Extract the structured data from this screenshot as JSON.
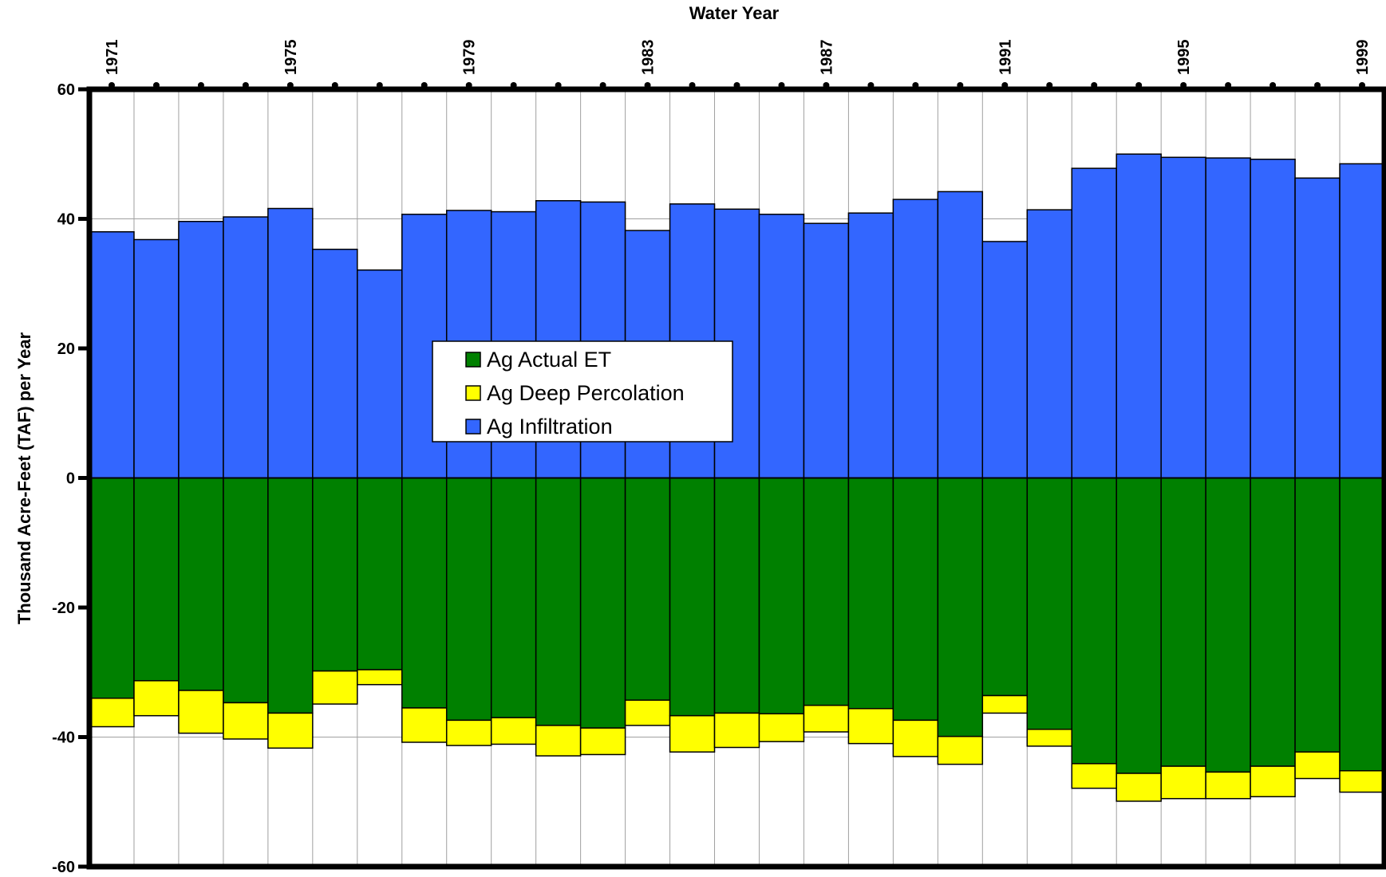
{
  "chart_data": {
    "type": "bar",
    "stacked": true,
    "title": "",
    "xlabel": "Water Year",
    "ylabel": "Thousand Acre-Feet (TAF) per Year",
    "ylim": [
      -60,
      60
    ],
    "yticks": [
      60,
      40,
      20,
      0,
      -20,
      -40,
      -60
    ],
    "grid": true,
    "legend_position": "center-left",
    "x_axis_position": "top",
    "categories": [
      "1971",
      "1972",
      "1973",
      "1974",
      "1975",
      "1976",
      "1977",
      "1978",
      "1979",
      "1980",
      "1981",
      "1982",
      "1983",
      "1984",
      "1985",
      "1986",
      "1987",
      "1988",
      "1989",
      "1990",
      "1991",
      "1992",
      "1993",
      "1994",
      "1995",
      "1996",
      "1997",
      "1998",
      "1999"
    ],
    "x_tick_labels": [
      "1971",
      "1975",
      "1979",
      "1983",
      "1987",
      "1991",
      "1995",
      "1999"
    ],
    "series": [
      {
        "name": "Ag Actual ET",
        "color": "#008000",
        "values": [
          -34.0,
          -31.3,
          -32.8,
          -34.7,
          -36.3,
          -29.8,
          -29.6,
          -35.5,
          -37.4,
          -37.0,
          -38.2,
          -38.6,
          -34.3,
          -36.7,
          -36.3,
          -36.4,
          -35.1,
          -35.6,
          -37.4,
          -39.9,
          -33.6,
          -38.8,
          -44.1,
          -45.6,
          -44.5,
          -45.4,
          -44.5,
          -42.3,
          -45.2
        ]
      },
      {
        "name": "Ag Deep Percolation",
        "color": "#ffff00",
        "values": [
          -4.4,
          -5.4,
          -6.6,
          -5.6,
          -5.4,
          -5.1,
          -2.3,
          -5.3,
          -3.9,
          -4.1,
          -4.7,
          -4.1,
          -3.9,
          -5.6,
          -5.3,
          -4.3,
          -4.1,
          -5.4,
          -5.6,
          -4.3,
          -2.7,
          -2.6,
          -3.8,
          -4.3,
          -5.0,
          -4.1,
          -4.7,
          -4.1,
          -3.3
        ]
      },
      {
        "name": "Ag Infiltration",
        "color": "#3366ff",
        "values": [
          38.0,
          36.8,
          39.6,
          40.3,
          41.6,
          35.3,
          32.1,
          40.7,
          41.3,
          41.1,
          42.8,
          42.6,
          38.2,
          42.3,
          41.5,
          40.7,
          39.3,
          40.9,
          43.0,
          44.2,
          36.5,
          41.4,
          47.8,
          50.0,
          49.5,
          49.4,
          49.2,
          46.3,
          48.5
        ]
      }
    ]
  }
}
